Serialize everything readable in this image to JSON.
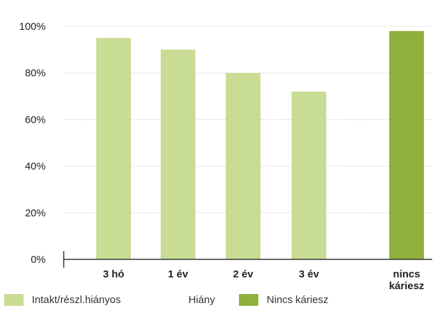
{
  "chart_data": {
    "type": "bar",
    "categories": [
      "3 hó",
      "1 év",
      "2 év",
      "3 év",
      "nincs káriesz"
    ],
    "values": [
      95,
      90,
      80,
      72,
      98
    ],
    "category_series": [
      "Intakt/részl.hiányos",
      "Intakt/részl.hiányos",
      "Intakt/részl.hiányos",
      "Intakt/részl.hiányos",
      "Nincs káriesz"
    ],
    "yticks": [
      "0%",
      "20%",
      "40%",
      "60%",
      "80%",
      "100%"
    ],
    "ylim": [
      0,
      100
    ],
    "grid": true,
    "legend_position": "bottom",
    "title": "",
    "xlabel": "",
    "ylabel": ""
  },
  "legend": [
    {
      "label": "Intakt/részl.hiányos",
      "color": "#c8dc94",
      "swatch": true
    },
    {
      "label": "Hiány",
      "color": "#ffffff",
      "swatch": false
    },
    {
      "label": "Nincs káriesz",
      "color": "#8fb03a",
      "swatch": true
    }
  ],
  "colors": {
    "light_bar": "#c8dc94",
    "dark_bar": "#8fb03a",
    "highlight_label": "#8fb03a",
    "grid": "#cfcfcf",
    "axis": "#333333"
  }
}
